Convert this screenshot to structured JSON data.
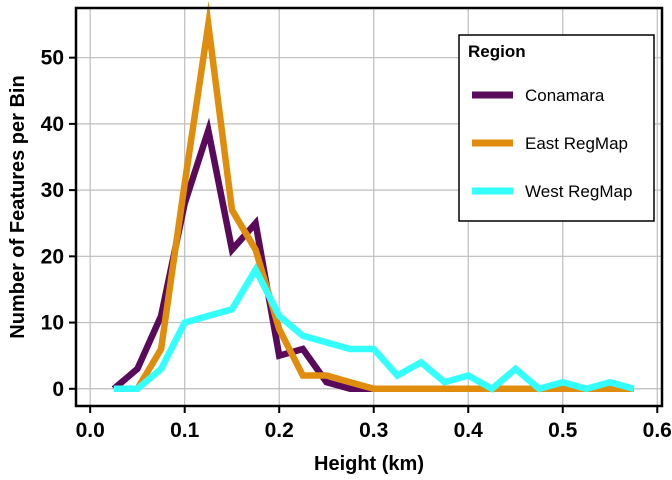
{
  "chart_data": {
    "type": "line",
    "title": "",
    "xlabel": "Height (km)",
    "ylabel": "Number of Features per Bin",
    "xlim": [
      -0.015,
      0.605
    ],
    "ylim": [
      -2.6,
      57.5
    ],
    "xticks": [
      0.0,
      0.1,
      0.2,
      0.3,
      0.4,
      0.5,
      0.6
    ],
    "xtick_labels": [
      "0.0",
      "0.1",
      "0.2",
      "0.3",
      "0.4",
      "0.5",
      "0.6"
    ],
    "yticks": [
      0,
      10,
      20,
      30,
      40,
      50
    ],
    "ytick_labels": [
      "0",
      "10",
      "20",
      "30",
      "40",
      "50"
    ],
    "grid": true,
    "legend": {
      "title": "Region",
      "position": "top-right"
    },
    "series": [
      {
        "name": "Conamara",
        "color": "#5a0a5a",
        "x": [
          0.025,
          0.05,
          0.075,
          0.1,
          0.125,
          0.15,
          0.175,
          0.2,
          0.225,
          0.25,
          0.275,
          0.3,
          0.325,
          0.35,
          0.375,
          0.4,
          0.425,
          0.45,
          0.475,
          0.5,
          0.525,
          0.55,
          0.575
        ],
        "y": [
          0,
          3,
          11,
          28,
          39,
          21,
          25,
          5,
          6,
          1,
          0,
          0,
          0,
          0,
          0,
          0,
          0,
          0,
          0,
          0,
          0,
          0,
          0
        ]
      },
      {
        "name": "East RegMap",
        "color": "#e08c0c",
        "x": [
          0.025,
          0.05,
          0.075,
          0.1,
          0.125,
          0.15,
          0.175,
          0.2,
          0.225,
          0.25,
          0.275,
          0.3,
          0.325,
          0.35,
          0.375,
          0.4,
          0.425,
          0.45,
          0.475,
          0.5,
          0.525,
          0.55,
          0.575
        ],
        "y": [
          0,
          0,
          6,
          31,
          55,
          27,
          21,
          9,
          2,
          2,
          1,
          0,
          0,
          0,
          0,
          0,
          0,
          0,
          0,
          0,
          0,
          0,
          0
        ]
      },
      {
        "name": "West RegMap",
        "color": "#33ffff",
        "x": [
          0.025,
          0.05,
          0.075,
          0.1,
          0.125,
          0.15,
          0.175,
          0.2,
          0.225,
          0.25,
          0.275,
          0.3,
          0.325,
          0.35,
          0.375,
          0.4,
          0.425,
          0.45,
          0.475,
          0.5,
          0.525,
          0.55,
          0.575
        ],
        "y": [
          0,
          0,
          3,
          10,
          11,
          12,
          18,
          11,
          8,
          7,
          6,
          6,
          2,
          4,
          1,
          2,
          0,
          3,
          0,
          1,
          0,
          1,
          0
        ]
      }
    ]
  }
}
